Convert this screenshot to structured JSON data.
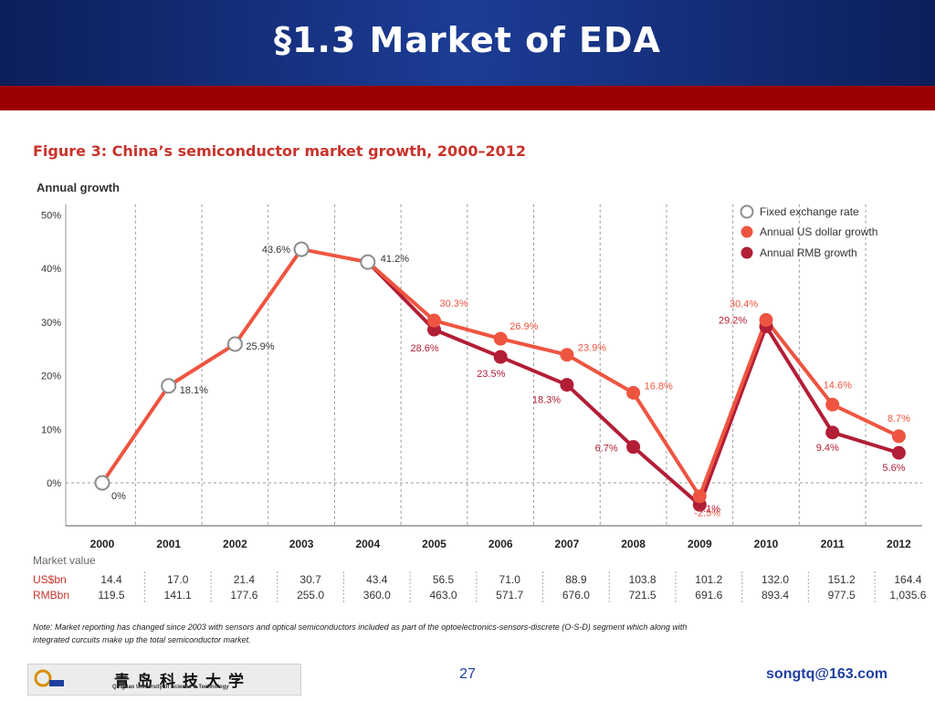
{
  "slide": {
    "title": "§1.3 Market of EDA",
    "page_number": "27",
    "email": "songtq@163.com",
    "logo_cn": "青岛科技大学",
    "logo_en": "Qingdao University of Science & Technology"
  },
  "figure": {
    "title": "Figure 3: China’s semiconductor market growth, 2000–2012"
  },
  "chart_data": {
    "type": "line",
    "y_axis_title": "Annual growth",
    "ylim": [
      -8,
      52
    ],
    "yticks": [
      {
        "value": 50,
        "label": "50%"
      },
      {
        "value": 40,
        "label": "40%"
      },
      {
        "value": 30,
        "label": "30%"
      },
      {
        "value": 20,
        "label": "20%"
      },
      {
        "value": 10,
        "label": "10%"
      },
      {
        "value": 0,
        "label": "0%"
      }
    ],
    "categories": [
      "2000",
      "2001",
      "2002",
      "2003",
      "2004",
      "2005",
      "2006",
      "2007",
      "2008",
      "2009",
      "2010",
      "2011",
      "2012"
    ],
    "legend": [
      "Fixed exchange rate",
      "Annual US dollar growth",
      "Annual RMB growth"
    ],
    "series": [
      {
        "name": "Fixed exchange rate",
        "color": "#ffffff",
        "points": [
          [
            0,
            0
          ],
          [
            1,
            18.1
          ],
          [
            2,
            25.9
          ],
          [
            3,
            43.6
          ],
          [
            4,
            41.2
          ]
        ],
        "labels": [
          "0%",
          "18.1%",
          "25.9%",
          "43.6%",
          "41.2%"
        ]
      },
      {
        "name": "Annual US dollar growth",
        "color": "#ee5540",
        "values": [
          null,
          null,
          null,
          null,
          null,
          30.3,
          26.9,
          23.9,
          16.8,
          -2.5,
          30.4,
          14.6,
          8.7
        ],
        "labels": [
          null,
          null,
          null,
          null,
          null,
          "30.3%",
          "26.9%",
          "23.9%",
          "16.8%",
          "-2.5%",
          "30.4%",
          "14.6%",
          "8.7%"
        ]
      },
      {
        "name": "Annual RMB growth",
        "color": "#b21e36",
        "values": [
          null,
          null,
          null,
          null,
          null,
          28.6,
          23.5,
          18.3,
          6.7,
          -4.1,
          29.2,
          9.4,
          5.6
        ],
        "labels": [
          null,
          null,
          null,
          null,
          null,
          "28.6%",
          "23.5%",
          "18.3%",
          "6.7%",
          "-4.1%",
          "29.2%",
          "9.4%",
          "5.6%"
        ]
      }
    ],
    "market_value": {
      "title": "Market value",
      "rows": [
        {
          "label": "US$bn",
          "values": [
            "14.4",
            "17.0",
            "21.4",
            "30.7",
            "43.4",
            "56.5",
            "71.0",
            "88.9",
            "103.8",
            "101.2",
            "132.0",
            "151.2",
            "164.4"
          ]
        },
        {
          "label": "RMBbn",
          "values": [
            "119.5",
            "141.1",
            "177.6",
            "255.0",
            "360.0",
            "463.0",
            "571.7",
            "676.0",
            "721.5",
            "691.6",
            "893.4",
            "977.5",
            "1,035.6"
          ]
        }
      ]
    },
    "note_lines": [
      "Note: Market reporting has changed since 2003 with sensors and optical semiconductors included as part of the optoelectronics-sensors-discrete (O-S-D) segment which along with",
      "integrated curcuits make up the total semiconductor market."
    ]
  }
}
